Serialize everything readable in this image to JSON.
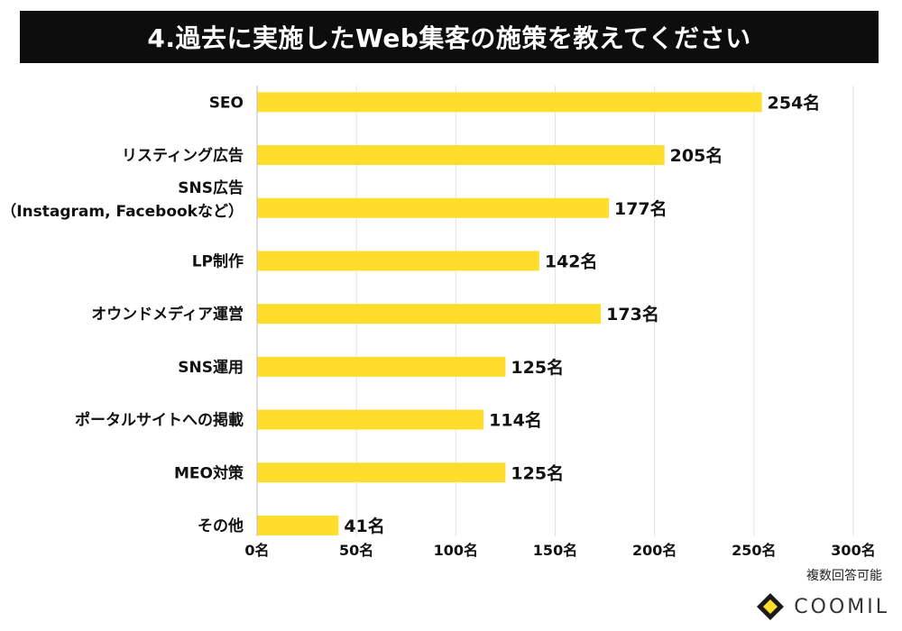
{
  "header": {
    "title": "4.過去に実施したWeb集客の施策を教えてください"
  },
  "chart_data": {
    "type": "bar",
    "orientation": "horizontal",
    "title": "4.過去に実施したWeb集客の施策を教えてください",
    "categories": [
      [
        "SEO"
      ],
      [
        "リスティング広告"
      ],
      [
        "SNS広告",
        "（Instagram, Facebookなど）"
      ],
      [
        "LP制作"
      ],
      [
        "オウンドメディア運営"
      ],
      [
        "SNS運用"
      ],
      [
        "ポータルサイトへの掲載"
      ],
      [
        "MEO対策"
      ],
      [
        "その他"
      ]
    ],
    "values": [
      254,
      205,
      177,
      142,
      173,
      125,
      114,
      125,
      41
    ],
    "value_labels": [
      "254名",
      "205名",
      "177名",
      "142名",
      "173名",
      "125名",
      "114名",
      "125名",
      "41名"
    ],
    "xlim": [
      0,
      300
    ],
    "ticks": [
      0,
      50,
      100,
      150,
      200,
      250,
      300
    ],
    "tick_labels": [
      "0名",
      "50名",
      "100名",
      "150名",
      "200名",
      "250名",
      "300名"
    ],
    "grid": true,
    "bar_color": "#FFDD2B",
    "grid_color": "#E2E2E2"
  },
  "footer": {
    "note": "複数回答可能",
    "brand": "COOMIL",
    "brand_icon": "diamond-chevron-icon",
    "brand_colors": [
      "#FFDD2B",
      "#1A1A1A"
    ]
  }
}
